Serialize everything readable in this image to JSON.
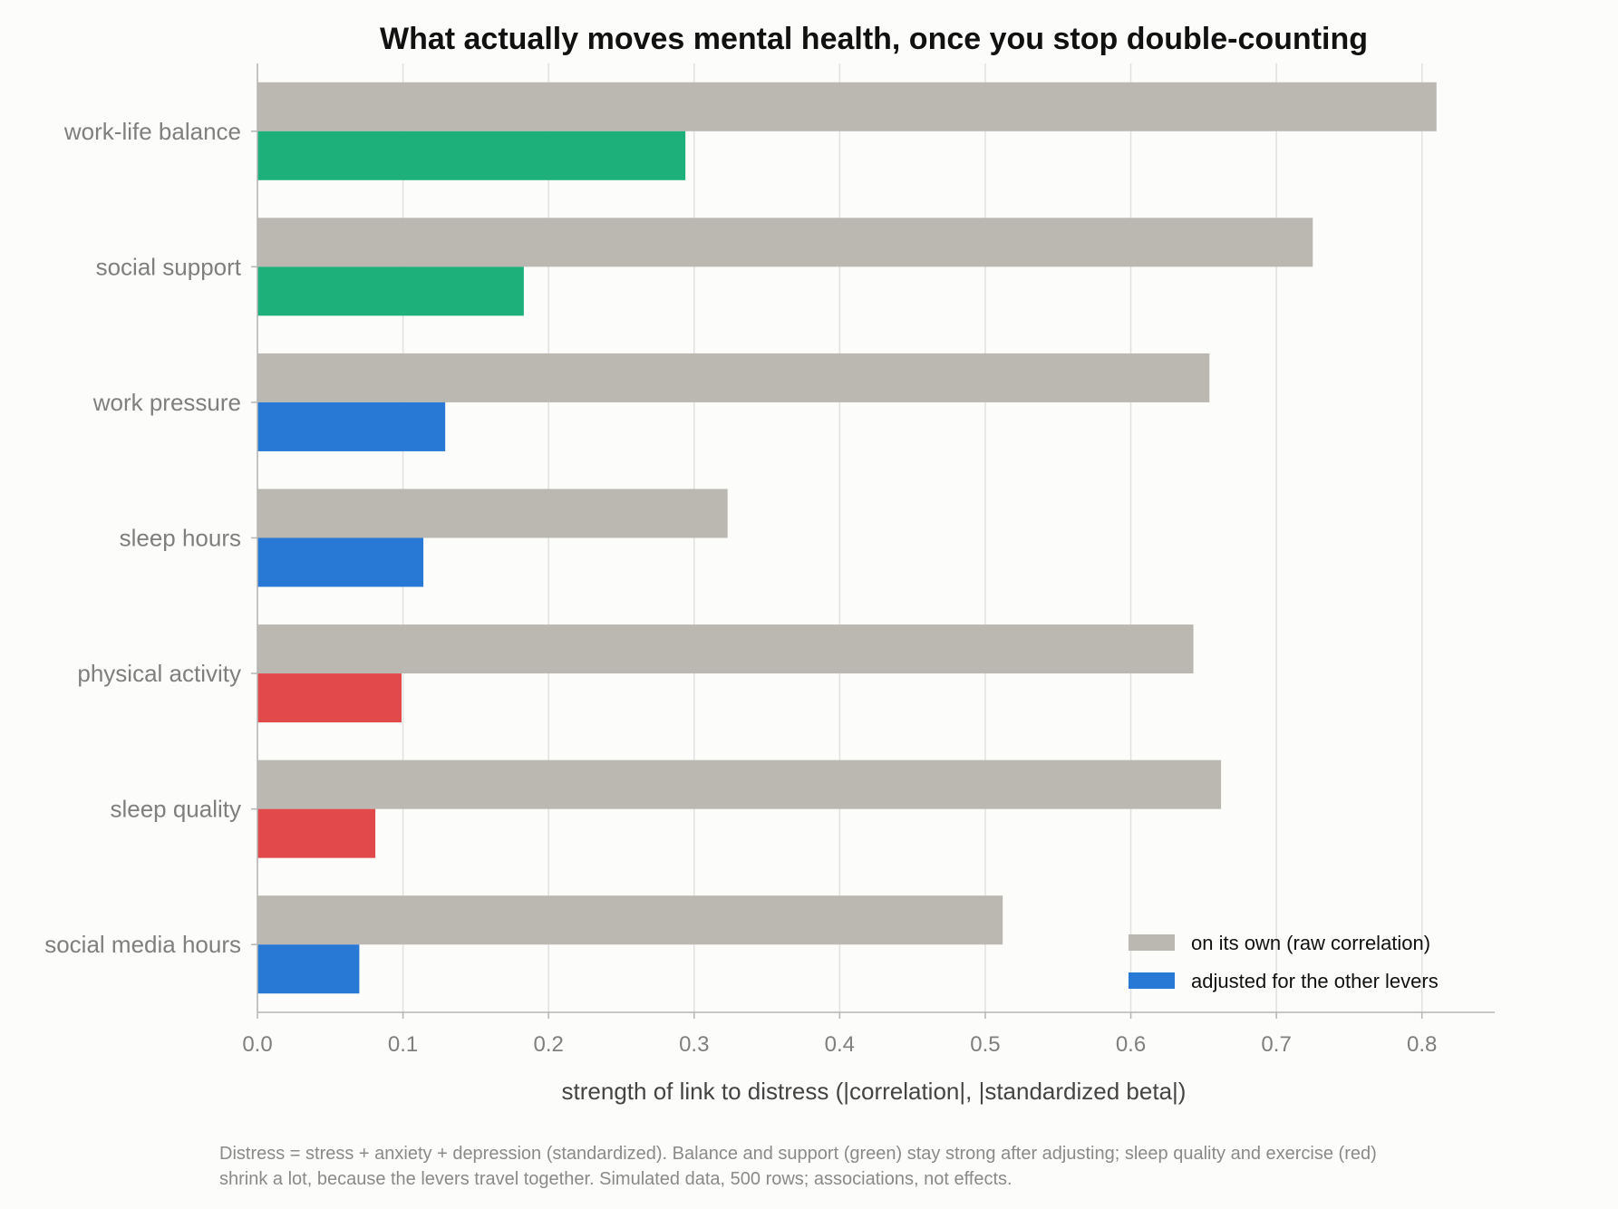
{
  "chart_data": {
    "type": "bar",
    "orientation": "horizontal",
    "title": "What actually moves mental health, once you stop double-counting",
    "xlabel": "strength of link to distress  (|correlation|, |standardized beta|)",
    "ylabel": "",
    "xlim": [
      0,
      0.85
    ],
    "xticks": [
      "0.0",
      "0.1",
      "0.2",
      "0.3",
      "0.4",
      "0.5",
      "0.6",
      "0.7",
      "0.8"
    ],
    "grid": "vertical",
    "legend_position": "bottom-right",
    "categories": [
      "work-life balance",
      "social support",
      "work pressure",
      "sleep hours",
      "physical activity",
      "sleep quality",
      "social media hours"
    ],
    "series": [
      {
        "name": "on its own (raw correlation)",
        "color": "#bab8b0",
        "values": [
          0.81,
          0.725,
          0.654,
          0.323,
          0.643,
          0.662,
          0.512
        ]
      },
      {
        "name": "adjusted for the other levers",
        "legend_color": "#2878d6",
        "values": [
          0.294,
          0.183,
          0.129,
          0.114,
          0.099,
          0.081,
          0.07
        ],
        "bar_colors": [
          "#1db07b",
          "#1db07b",
          "#2878d6",
          "#2878d6",
          "#e2494a",
          "#e2494a",
          "#2878d6"
        ]
      }
    ],
    "footnote": [
      "Distress = stress + anxiety + depression (standardized). Balance and support (green) stay strong after adjusting; sleep quality and exercise (red)",
      "shrink a lot, because the levers travel together. Simulated data, 500 rows; associations, not effects."
    ]
  }
}
